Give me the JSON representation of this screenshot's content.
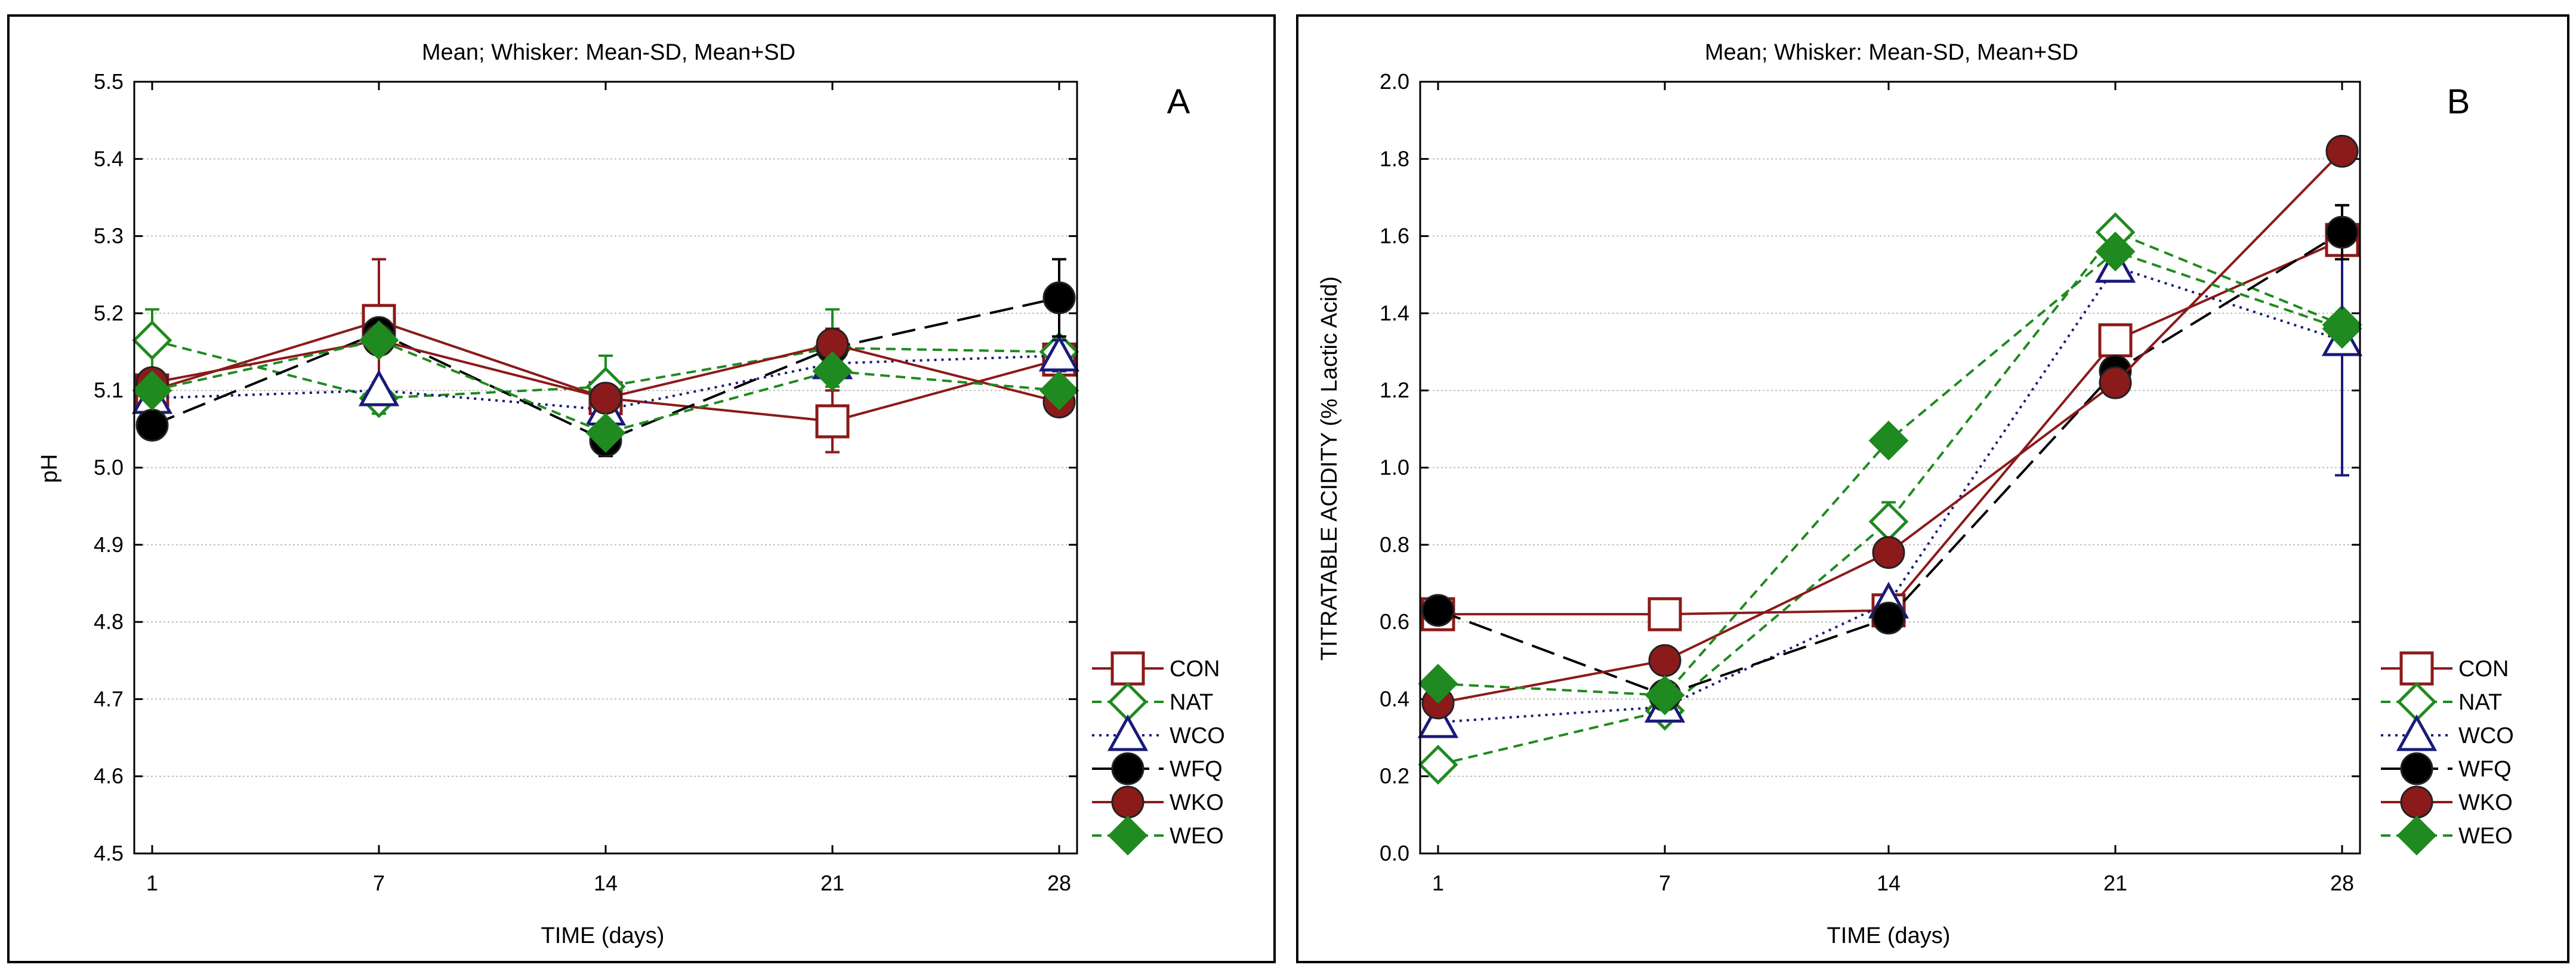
{
  "chart_data": [
    {
      "type": "line",
      "panel_label": "A",
      "title": "Mean;  Whisker: Mean-SD, Mean+SD",
      "xlabel": "TIME (days)",
      "ylabel": "pH",
      "categories": [
        "1",
        "7",
        "14",
        "21",
        "28"
      ],
      "ylim": [
        4.5,
        5.5
      ],
      "yticks": [
        "4.5",
        "4.6",
        "4.7",
        "4.8",
        "4.9",
        "5.0",
        "5.1",
        "5.2",
        "5.3",
        "5.4",
        "5.5"
      ],
      "grid": true,
      "legend_position": "bottom-right",
      "series": [
        {
          "name": "CON",
          "values": [
            5.1,
            5.19,
            5.09,
            5.06,
            5.14
          ],
          "sd": [
            0.01,
            0.08,
            0.01,
            0.04,
            0.01
          ]
        },
        {
          "name": "NAT",
          "values": [
            5.165,
            5.09,
            5.105,
            5.155,
            5.15
          ],
          "sd": [
            0.04,
            0.02,
            0.04,
            0.05,
            0.01
          ]
        },
        {
          "name": "WCO",
          "values": [
            5.09,
            5.1,
            5.075,
            5.135,
            5.145
          ],
          "sd": [
            0.01,
            0.01,
            0.01,
            0.01,
            0.02
          ]
        },
        {
          "name": "WFQ",
          "values": [
            5.055,
            5.175,
            5.035,
            5.155,
            5.22
          ],
          "sd": [
            0.01,
            0.01,
            0.02,
            0.01,
            0.05
          ]
        },
        {
          "name": "WKO",
          "values": [
            5.11,
            5.165,
            5.09,
            5.16,
            5.085
          ],
          "sd": [
            0.01,
            0.01,
            0.01,
            0.02,
            0.01
          ]
        },
        {
          "name": "WEO",
          "values": [
            5.1,
            5.165,
            5.045,
            5.125,
            5.1
          ],
          "sd": [
            0.01,
            0.01,
            0.01,
            0.01,
            0.01
          ]
        }
      ]
    },
    {
      "type": "line",
      "panel_label": "B",
      "title": "Mean;  Whisker: Mean-SD, Mean+SD",
      "xlabel": "TIME (days)",
      "ylabel": "TITRATABLE ACIDITY (% Lactic Acid)",
      "categories": [
        "1",
        "7",
        "14",
        "21",
        "28"
      ],
      "ylim": [
        0.0,
        2.0
      ],
      "yticks": [
        "0.0",
        "0.2",
        "0.4",
        "0.6",
        "0.8",
        "1.0",
        "1.2",
        "1.4",
        "1.6",
        "1.8",
        "2.0"
      ],
      "grid": true,
      "legend_position": "bottom-right",
      "series": [
        {
          "name": "CON",
          "values": [
            0.62,
            0.62,
            0.63,
            1.33,
            1.59
          ],
          "sd": [
            0.01,
            0.01,
            0.01,
            0.02,
            0.02
          ]
        },
        {
          "name": "NAT",
          "values": [
            0.23,
            0.37,
            0.86,
            1.61,
            1.37
          ],
          "sd": [
            0.01,
            0.01,
            0.05,
            0.02,
            0.02
          ]
        },
        {
          "name": "WCO",
          "values": [
            0.34,
            0.38,
            0.65,
            1.52,
            1.33
          ],
          "sd": [
            0.01,
            0.01,
            0.01,
            0.02,
            0.35
          ]
        },
        {
          "name": "WFQ",
          "values": [
            0.63,
            0.41,
            0.61,
            1.25,
            1.61
          ],
          "sd": [
            0.01,
            0.01,
            0.01,
            0.02,
            0.07
          ]
        },
        {
          "name": "WKO",
          "values": [
            0.39,
            0.5,
            0.78,
            1.22,
            1.82
          ],
          "sd": [
            0.01,
            0.01,
            0.01,
            0.01,
            0.01
          ]
        },
        {
          "name": "WEO",
          "values": [
            0.44,
            0.41,
            1.07,
            1.56,
            1.36
          ],
          "sd": [
            0.01,
            0.01,
            0.01,
            0.02,
            0.02
          ]
        }
      ]
    }
  ],
  "styles": {
    "CON": {
      "color": "#8b1a1a",
      "dash": "",
      "marker": "square-open"
    },
    "NAT": {
      "color": "#1f8a1f",
      "dash": "16 10",
      "marker": "diamond-open"
    },
    "WCO": {
      "color": "#1a1a7a",
      "dash": "4 8",
      "marker": "triangle-open"
    },
    "WFQ": {
      "color": "#000000",
      "dash": "40 16",
      "marker": "circle-filled"
    },
    "WKO": {
      "color": "#8b1a1a",
      "dash": "",
      "marker": "circle-filled"
    },
    "WEO": {
      "color": "#1f8a1f",
      "dash": "16 10",
      "marker": "diamond-filled"
    }
  }
}
